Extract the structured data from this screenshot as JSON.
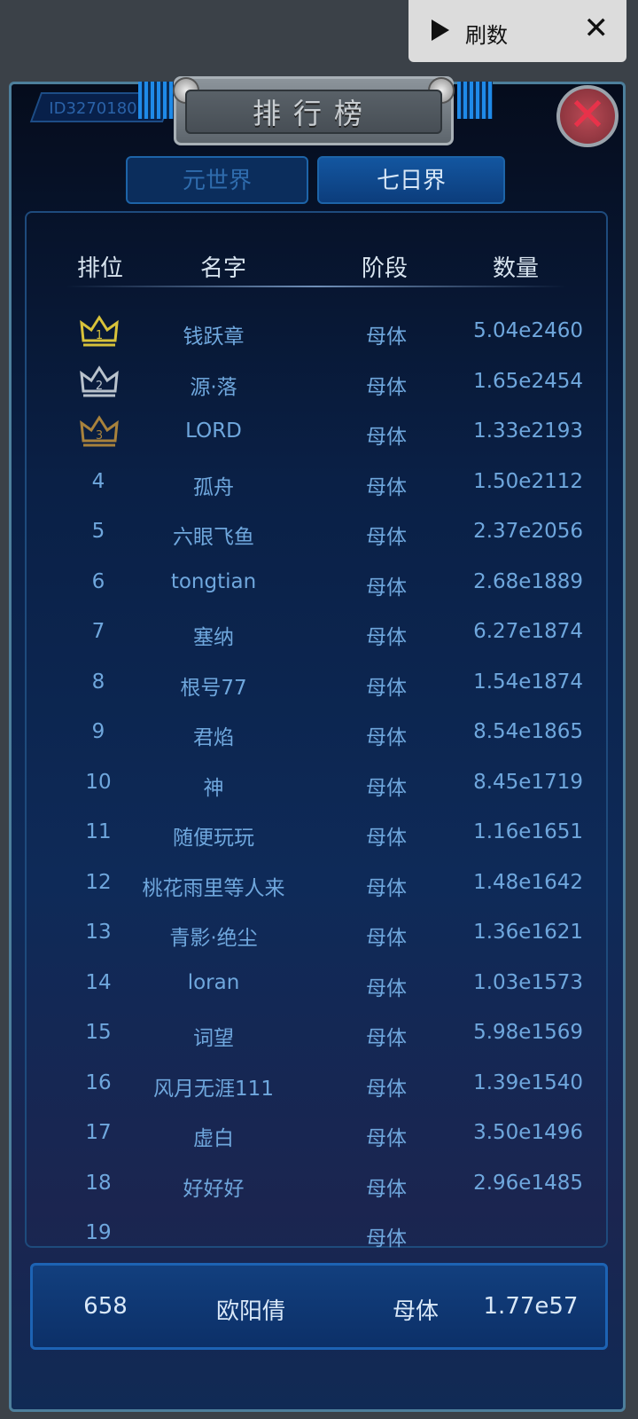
{
  "overlay": {
    "label": "刷数",
    "play_icon": "play-icon",
    "close_icon": "close-icon"
  },
  "header": {
    "id_text": "ID3270180",
    "title": "排行榜"
  },
  "tabs": [
    {
      "label": "元世界",
      "active": false
    },
    {
      "label": "七日界",
      "active": true
    }
  ],
  "columns": {
    "rank": "排位",
    "name": "名字",
    "stage": "阶段",
    "value": "数量"
  },
  "rows": [
    {
      "rank": "1",
      "name": "钱跃章",
      "stage": "母体",
      "value": "5.04e2460"
    },
    {
      "rank": "2",
      "name": "源·落",
      "stage": "母体",
      "value": "1.65e2454"
    },
    {
      "rank": "3",
      "name": "LORD",
      "stage": "母体",
      "value": "1.33e2193"
    },
    {
      "rank": "4",
      "name": "孤舟",
      "stage": "母体",
      "value": "1.50e2112"
    },
    {
      "rank": "5",
      "name": "六眼飞鱼",
      "stage": "母体",
      "value": "2.37e2056"
    },
    {
      "rank": "6",
      "name": "tongtian",
      "stage": "母体",
      "value": "2.68e1889"
    },
    {
      "rank": "7",
      "name": "塞纳",
      "stage": "母体",
      "value": "6.27e1874"
    },
    {
      "rank": "8",
      "name": "根号77",
      "stage": "母体",
      "value": "1.54e1874"
    },
    {
      "rank": "9",
      "name": "君焰",
      "stage": "母体",
      "value": "8.54e1865"
    },
    {
      "rank": "10",
      "name": "神",
      "stage": "母体",
      "value": "8.45e1719"
    },
    {
      "rank": "11",
      "name": "随便玩玩",
      "stage": "母体",
      "value": "1.16e1651"
    },
    {
      "rank": "12",
      "name": "桃花雨里等人来",
      "stage": "母体",
      "value": "1.48e1642"
    },
    {
      "rank": "13",
      "name": "青影·绝尘",
      "stage": "母体",
      "value": "1.36e1621"
    },
    {
      "rank": "14",
      "name": "loran",
      "stage": "母体",
      "value": "1.03e1573"
    },
    {
      "rank": "15",
      "name": "词望",
      "stage": "母体",
      "value": "5.98e1569"
    },
    {
      "rank": "16",
      "name": "风月无涯111",
      "stage": "母体",
      "value": "1.39e1540"
    },
    {
      "rank": "17",
      "name": "虚白",
      "stage": "母体",
      "value": "3.50e1496"
    },
    {
      "rank": "18",
      "name": "好好好",
      "stage": "母体",
      "value": "2.96e1485"
    },
    {
      "rank": "19",
      "name": "",
      "stage": "母体",
      "value": ""
    }
  ],
  "me": {
    "rank": "658",
    "name": "欧阳倩",
    "stage": "母体",
    "value": "1.77e57"
  },
  "colors": {
    "gold": "#d8c23a",
    "silver": "#b9c2cc",
    "bronze": "#a8823c",
    "row_text": "#6fa7dd"
  }
}
